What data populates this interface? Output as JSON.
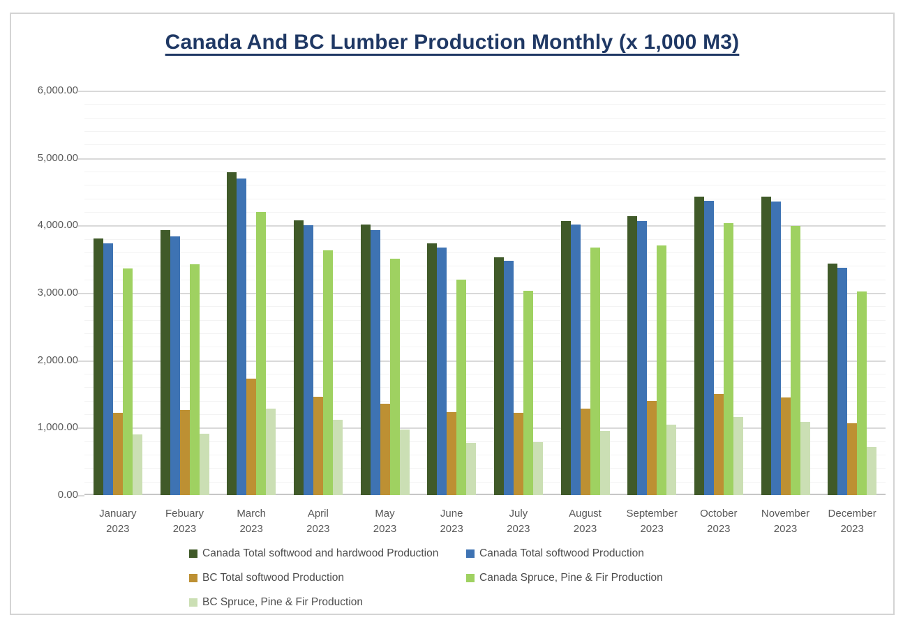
{
  "chart_data": {
    "type": "bar",
    "title": "Canada And BC Lumber Production Monthly (x 1,000 M3)",
    "categories": [
      "January 2023",
      "Febuary 2023",
      "March 2023",
      "April 2023",
      "May 2023",
      "June 2023",
      "July 2023",
      "August 2023",
      "September 2023",
      "October 2023",
      "November 2023",
      "December 2023"
    ],
    "series": [
      {
        "name": "Canada Total softwood and hardwood Production",
        "color": "#405a29",
        "values": [
          3810,
          3930,
          4790,
          4080,
          4010,
          3730,
          3530,
          4070,
          4140,
          4430,
          4430,
          3430
        ]
      },
      {
        "name": "Canada Total softwood Production",
        "color": "#3e73b3",
        "values": [
          3730,
          3840,
          4700,
          4000,
          3930,
          3670,
          3480,
          4010,
          4070,
          4370,
          4360,
          3370
        ]
      },
      {
        "name": "BC Total softwood Production",
        "color": "#bd9033",
        "values": [
          1220,
          1260,
          1730,
          1460,
          1360,
          1230,
          1220,
          1280,
          1400,
          1500,
          1450,
          1070
        ]
      },
      {
        "name": "Canada Spruce, Pine & Fir Production",
        "color": "#9fd161",
        "values": [
          3360,
          3420,
          4200,
          3630,
          3510,
          3200,
          3030,
          3670,
          3700,
          4030,
          3990,
          3020
        ]
      },
      {
        "name": "BC Spruce, Pine & Fir Production",
        "color": "#cbdfb4",
        "values": [
          900,
          915,
          1280,
          1120,
          970,
          780,
          790,
          955,
          1050,
          1160,
          1090,
          710
        ]
      }
    ],
    "y_axis": {
      "min": 0,
      "max": 6000,
      "major_step": 1000,
      "minor_step": 200,
      "tick_labels": [
        "6,000.00",
        "5,000.00",
        "4,000.00",
        "3,000.00",
        "2,000.00",
        "1,000.00",
        "0.00"
      ]
    },
    "grid": {
      "on": true,
      "major_color": "#d9d9d9",
      "minor_color": "#f3f3f3",
      "axis_line_color": "#c6c6c6"
    },
    "legend_position": "bottom",
    "colors": {
      "title_text": "#1f3864",
      "axis_text": "#595959",
      "legend_text": "#4d4d4d",
      "frame_border": "#d4d4d4"
    }
  }
}
